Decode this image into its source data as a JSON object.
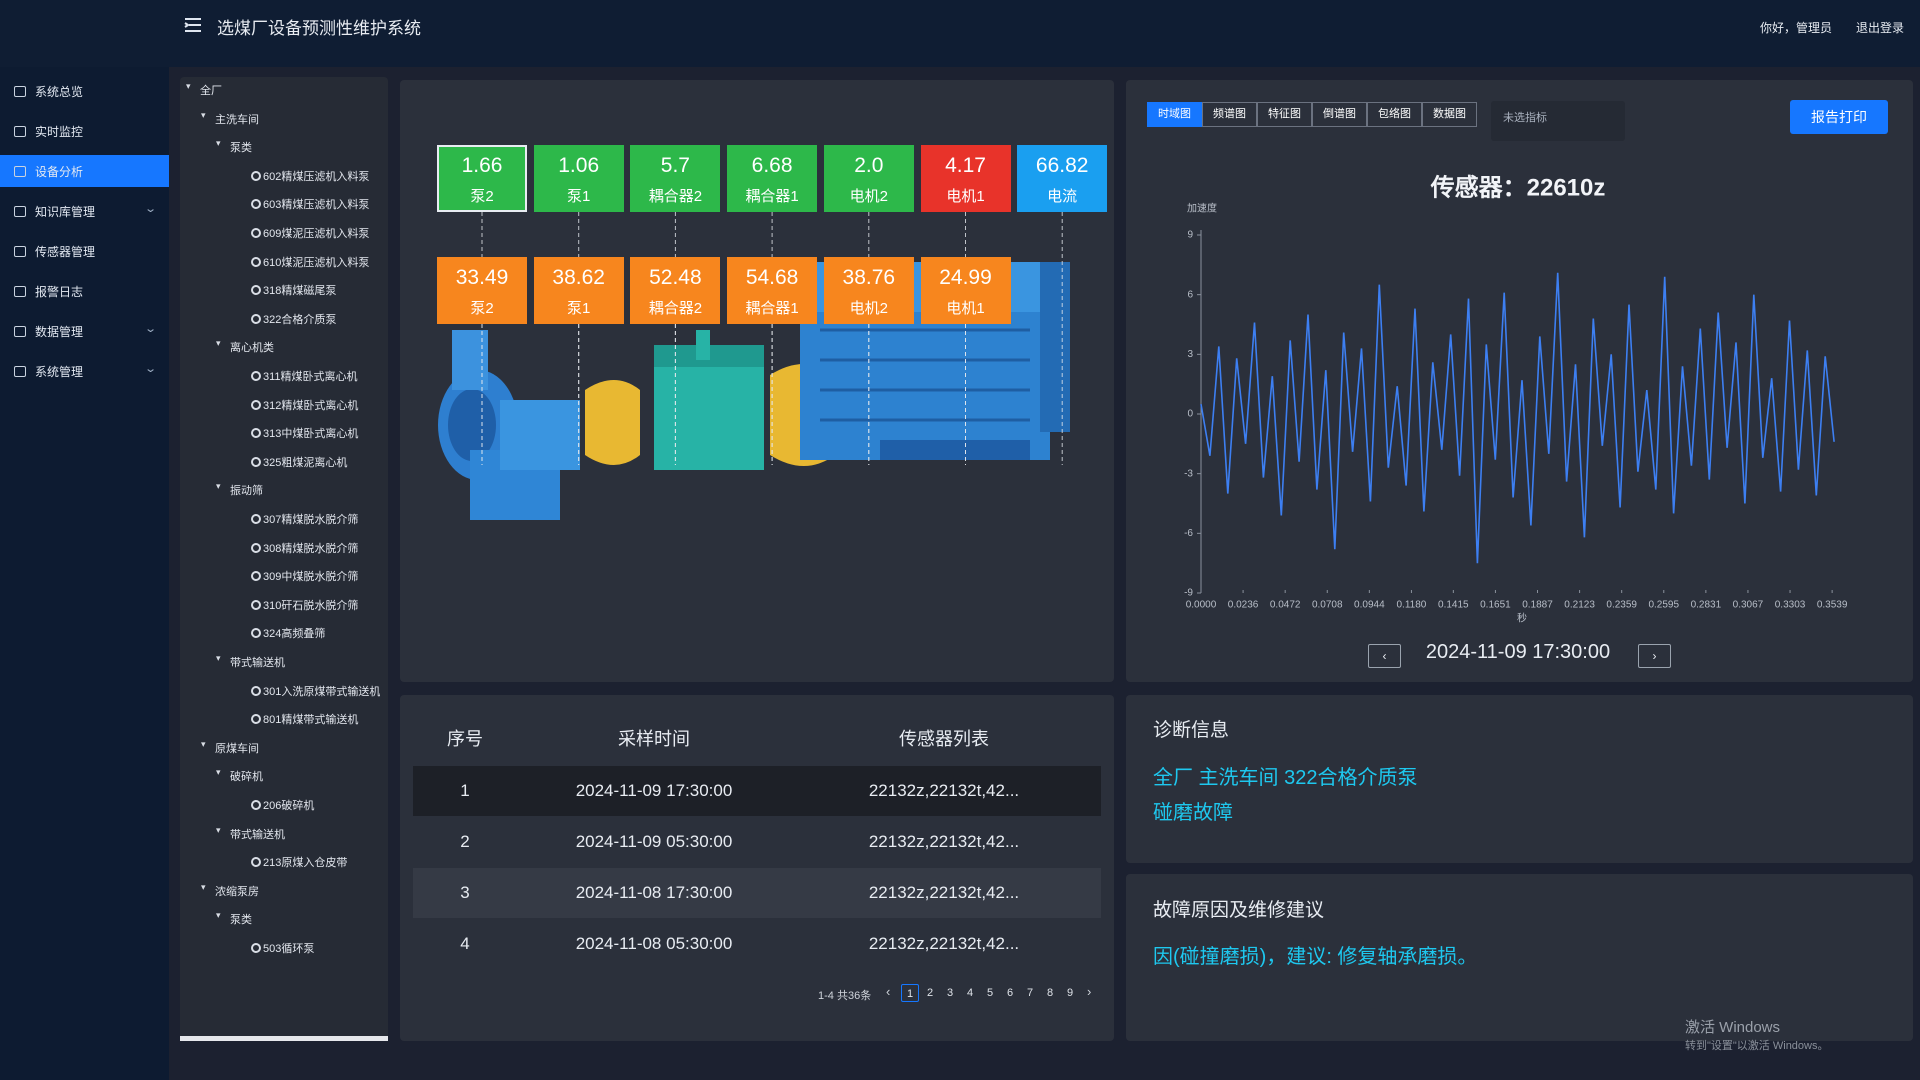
{
  "header": {
    "title": "选煤厂设备预测性维护系统",
    "greeting": "你好，管理员",
    "logout": "退出登录"
  },
  "sidebar": {
    "active": 2,
    "items": [
      {
        "label": "系统总览",
        "expandable": false
      },
      {
        "label": "实时监控",
        "expandable": false
      },
      {
        "label": "设备分析",
        "expandable": false
      },
      {
        "label": "知识库管理",
        "expandable": true
      },
      {
        "label": "传感器管理",
        "expandable": false
      },
      {
        "label": "报警日志",
        "expandable": false
      },
      {
        "label": "数据管理",
        "expandable": true
      },
      {
        "label": "系统管理",
        "expandable": true
      }
    ]
  },
  "tree": {
    "selected": 9,
    "nodes": [
      {
        "label": "全厂",
        "level": 0,
        "leaf": false
      },
      {
        "label": "主洗车间",
        "level": 1,
        "leaf": false
      },
      {
        "label": "泵类",
        "level": 2,
        "leaf": false
      },
      {
        "label": "602精煤压滤机入料泵",
        "level": 3,
        "leaf": true
      },
      {
        "label": "603精煤压滤机入料泵",
        "level": 3,
        "leaf": true
      },
      {
        "label": "609煤泥压滤机入料泵",
        "level": 3,
        "leaf": true
      },
      {
        "label": "610煤泥压滤机入料泵",
        "level": 3,
        "leaf": true
      },
      {
        "label": "318精煤磁尾泵",
        "level": 3,
        "leaf": true
      },
      {
        "label": "322合格介质泵",
        "level": 3,
        "leaf": true
      },
      {
        "label": "离心机类",
        "level": 2,
        "leaf": false
      },
      {
        "label": "311精煤卧式离心机",
        "level": 3,
        "leaf": true
      },
      {
        "label": "312精煤卧式离心机",
        "level": 3,
        "leaf": true
      },
      {
        "label": "313中煤卧式离心机",
        "level": 3,
        "leaf": true
      },
      {
        "label": "325粗煤泥离心机",
        "level": 3,
        "leaf": true
      },
      {
        "label": "振动筛",
        "level": 2,
        "leaf": false
      },
      {
        "label": "307精煤脱水脱介筛",
        "level": 3,
        "leaf": true
      },
      {
        "label": "308精煤脱水脱介筛",
        "level": 3,
        "leaf": true
      },
      {
        "label": "309中煤脱水脱介筛",
        "level": 3,
        "leaf": true
      },
      {
        "label": "310矸石脱水脱介筛",
        "level": 3,
        "leaf": true
      },
      {
        "label": "324高频叠筛",
        "level": 3,
        "leaf": true
      },
      {
        "label": "带式输送机",
        "level": 2,
        "leaf": false
      },
      {
        "label": "301入洗原煤带式输送机",
        "level": 3,
        "leaf": true
      },
      {
        "label": "801精煤带式输送机",
        "level": 3,
        "leaf": true
      },
      {
        "label": "原煤车间",
        "level": 1,
        "leaf": false
      },
      {
        "label": "破碎机",
        "level": 2,
        "leaf": false
      },
      {
        "label": "206破碎机",
        "level": 3,
        "leaf": true
      },
      {
        "label": "带式输送机",
        "level": 2,
        "leaf": false
      },
      {
        "label": "213原煤入仓皮带",
        "level": 3,
        "leaf": true
      },
      {
        "label": "浓缩泵房",
        "level": 1,
        "leaf": false
      },
      {
        "label": "泵类",
        "level": 2,
        "leaf": false
      },
      {
        "label": "503循环泵",
        "level": 3,
        "leaf": true
      }
    ]
  },
  "sensor_cards": {
    "top": [
      {
        "value": "1.66",
        "label": "泵2",
        "color": "#2db84a"
      },
      {
        "value": "1.06",
        "label": "泵1",
        "color": "#2db84a"
      },
      {
        "value": "5.7",
        "label": "耦合器2",
        "color": "#2db84a"
      },
      {
        "value": "6.68",
        "label": "耦合器1",
        "color": "#2db84a"
      },
      {
        "value": "2.0",
        "label": "电机2",
        "color": "#2db84a"
      },
      {
        "value": "4.17",
        "label": "电机1",
        "color": "#e8332a"
      },
      {
        "value": "66.82",
        "label": "电流",
        "color": "#1a9ff0"
      }
    ],
    "bottom": [
      {
        "value": "33.49",
        "label": "泵2",
        "color": "#f7861e"
      },
      {
        "value": "38.62",
        "label": "泵1",
        "color": "#f7861e"
      },
      {
        "value": "52.48",
        "label": "耦合器2",
        "color": "#f7861e"
      },
      {
        "value": "54.68",
        "label": "耦合器1",
        "color": "#f7861e"
      },
      {
        "value": "38.76",
        "label": "电机2",
        "color": "#f7861e"
      },
      {
        "value": "24.99",
        "label": "电机1",
        "color": "#f7861e"
      }
    ]
  },
  "tabs": {
    "active": 0,
    "items": [
      "时域图",
      "频谱图",
      "特征图",
      "倒谱图",
      "包络图",
      "数据图"
    ]
  },
  "indicator_placeholder": "未选指标",
  "print_button": "报告打印",
  "chart_data": {
    "type": "line",
    "title": "传感器：22610z",
    "ylabel": "加速度",
    "xlabel": "秒",
    "grid": false,
    "xlim": [
      0,
      0.36
    ],
    "ylim": [
      -9,
      9
    ],
    "yticks": [
      -9,
      -6,
      -3,
      0,
      3,
      6,
      9
    ],
    "xticks": [
      {
        "value": 0,
        "label": "0.0000"
      },
      {
        "value": 0.0236,
        "label": "0.0236"
      },
      {
        "value": 0.0472,
        "label": "0.0472"
      },
      {
        "value": 0.0708,
        "label": "0.0708"
      },
      {
        "value": 0.0944,
        "label": "0.0944"
      },
      {
        "value": 0.118,
        "label": "0.1180"
      },
      {
        "value": 0.1415,
        "label": "0.1415"
      },
      {
        "value": 0.1651,
        "label": "0.1651"
      },
      {
        "value": 0.1887,
        "label": "0.1887"
      },
      {
        "value": 0.2123,
        "label": "0.2123"
      },
      {
        "value": 0.2359,
        "label": "0.2359"
      },
      {
        "value": 0.2595,
        "label": "0.2595"
      },
      {
        "value": 0.2831,
        "label": "0.2831"
      },
      {
        "value": 0.3067,
        "label": "0.3067"
      },
      {
        "value": 0.3303,
        "label": "0.3303"
      },
      {
        "value": 0.3539,
        "label": "0.3539"
      }
    ],
    "x": [
      0,
      0.005,
      0.01,
      0.015,
      0.02,
      0.025,
      0.03,
      0.035,
      0.04,
      0.045,
      0.05,
      0.055,
      0.06,
      0.065,
      0.07,
      0.075,
      0.08,
      0.085,
      0.09,
      0.095,
      0.1,
      0.105,
      0.11,
      0.115,
      0.12,
      0.125,
      0.13,
      0.135,
      0.14,
      0.145,
      0.15,
      0.155,
      0.16,
      0.165,
      0.17,
      0.175,
      0.18,
      0.185,
      0.19,
      0.195,
      0.2,
      0.205,
      0.21,
      0.215,
      0.22,
      0.225,
      0.23,
      0.235,
      0.24,
      0.245,
      0.25,
      0.255,
      0.26,
      0.265,
      0.27,
      0.275,
      0.28,
      0.285,
      0.29,
      0.295,
      0.3,
      0.305,
      0.31,
      0.315,
      0.32,
      0.325,
      0.33,
      0.335,
      0.34,
      0.345,
      0.35,
      0.355
    ],
    "series": [
      {
        "color": "#3d7ff2",
        "values": [
          0.5,
          -2.1,
          3.4,
          -4.0,
          2.8,
          -1.5,
          4.6,
          -3.2,
          1.9,
          -5.1,
          3.7,
          -2.4,
          5.0,
          -3.8,
          2.2,
          -6.8,
          4.1,
          -1.9,
          3.3,
          -4.4,
          6.5,
          -2.7,
          1.4,
          -3.6,
          5.3,
          -4.9,
          2.6,
          -1.8,
          4.0,
          -3.1,
          5.8,
          -7.5,
          3.5,
          -2.3,
          6.1,
          -4.2,
          1.7,
          -5.6,
          3.9,
          -2.0,
          7.1,
          -3.4,
          2.5,
          -6.2,
          4.8,
          -1.6,
          3.0,
          -4.7,
          5.5,
          -2.9,
          1.2,
          -3.8,
          6.9,
          -5.0,
          2.4,
          -2.6,
          4.3,
          -3.3,
          5.1,
          -1.7,
          3.6,
          -4.5,
          6.0,
          -2.2,
          1.8,
          -3.9,
          4.7,
          -2.8,
          3.2,
          -4.1,
          2.9,
          -1.4
        ]
      }
    ]
  },
  "date_nav": {
    "date": "2024-11-09 17:30:00"
  },
  "table": {
    "highlighted": 0,
    "headers": [
      "序号",
      "采样时间",
      "传感器列表"
    ],
    "rows": [
      [
        "1",
        "2024-11-09 17:30:00",
        "22132z,22132t,42..."
      ],
      [
        "2",
        "2024-11-09 05:30:00",
        "22132z,22132t,42..."
      ],
      [
        "3",
        "2024-11-08 17:30:00",
        "22132z,22132t,42..."
      ],
      [
        "4",
        "2024-11-08 05:30:00",
        "22132z,22132t,42..."
      ]
    ]
  },
  "pagination": {
    "summary": "1-4 共36条",
    "current": 0,
    "pages": [
      "1",
      "2",
      "3",
      "4",
      "5",
      "6",
      "7",
      "8",
      "9"
    ]
  },
  "diagnosis": {
    "title": "诊断信息",
    "location": "全厂 主洗车间 322合格介质泵",
    "fault": "碰磨故障"
  },
  "advice": {
    "title": "故障原因及维修建议",
    "text": "因(碰撞磨损)，建议: 修复轴承磨损。"
  },
  "watermark": {
    "title": "激活 Windows",
    "text": "转到\"设置\"以激活 Windows。"
  }
}
